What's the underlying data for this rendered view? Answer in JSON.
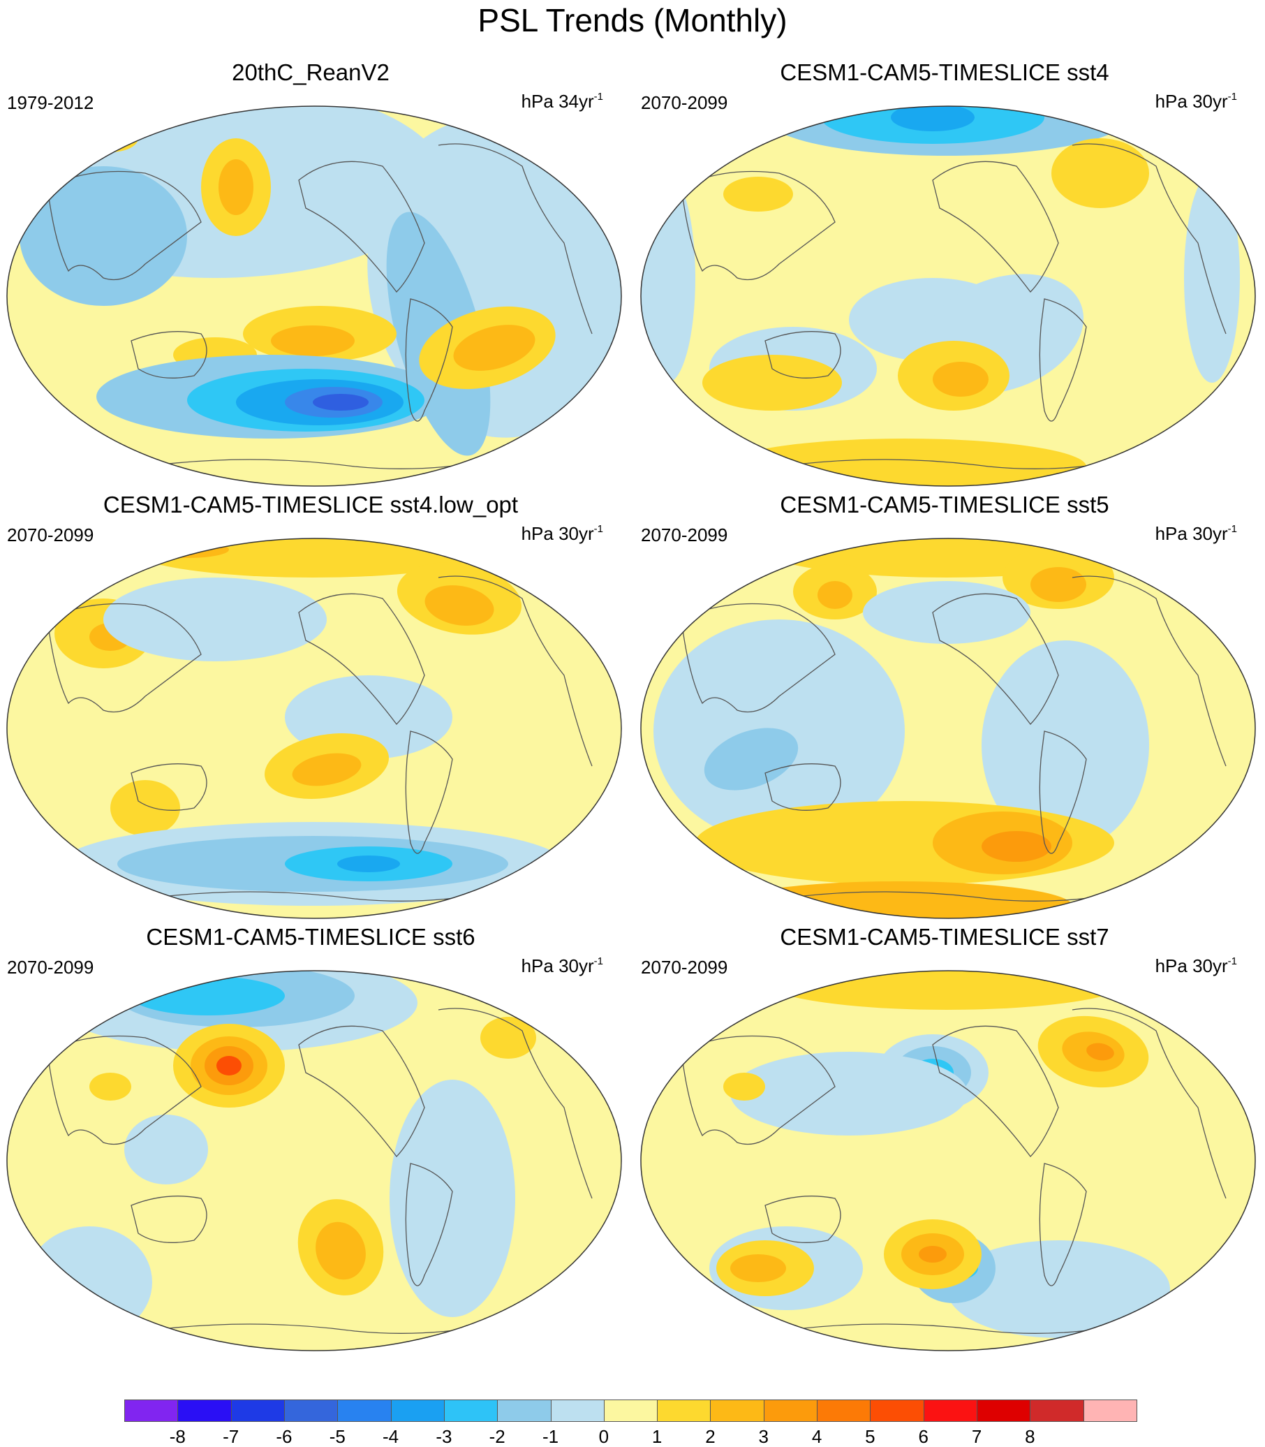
{
  "title": "PSL Trends (Monthly)",
  "colors": {
    "ocean_neg1": "#bde0f0",
    "neg2": "#8ecbea",
    "neg3": "#2fc7f5",
    "neg4": "#19a8f0",
    "neg5": "#3887ea",
    "neg6": "#2f5fe0",
    "zero_pos": "#fcf7a0",
    "pos1": "#fdd92f",
    "pos2": "#fdb916",
    "pos3": "#fc9b0c",
    "coast": "#555555"
  },
  "panels": [
    {
      "title": "20thC_ReanV2",
      "period": "1979-2012",
      "units": "hPa 34yr",
      "units_sup": "-1"
    },
    {
      "title": "CESM1-CAM5-TIMESLICE sst4",
      "period": "2070-2099",
      "units": "hPa 30yr",
      "units_sup": "-1"
    },
    {
      "title": "CESM1-CAM5-TIMESLICE sst4.low_opt",
      "period": "2070-2099",
      "units": "hPa 30yr",
      "units_sup": "-1"
    },
    {
      "title": "CESM1-CAM5-TIMESLICE sst5",
      "period": "2070-2099",
      "units": "hPa 30yr",
      "units_sup": "-1"
    },
    {
      "title": "CESM1-CAM5-TIMESLICE sst6",
      "period": "2070-2099",
      "units": "hPa 30yr",
      "units_sup": "-1"
    },
    {
      "title": "CESM1-CAM5-TIMESLICE sst7",
      "period": "2070-2099",
      "units": "hPa 30yr",
      "units_sup": "-1"
    }
  ],
  "colorbar": {
    "labels": [
      "-8",
      "-7",
      "-6",
      "-5",
      "-4",
      "-3",
      "-2",
      "-1",
      "0",
      "1",
      "2",
      "3",
      "4",
      "5",
      "6",
      "7",
      "8"
    ],
    "colors": [
      "#8125f0",
      "#2a0ff5",
      "#1e3ae6",
      "#3466dc",
      "#2882f0",
      "#1aa0f2",
      "#2ec3f7",
      "#8ecbea",
      "#bde0f0",
      "#fcf7a0",
      "#fdd92f",
      "#fdb916",
      "#fc9b0c",
      "#fc7a06",
      "#fc4e04",
      "#fb1212",
      "#de0000",
      "#d02a2a",
      "#ffb4b4"
    ]
  }
}
